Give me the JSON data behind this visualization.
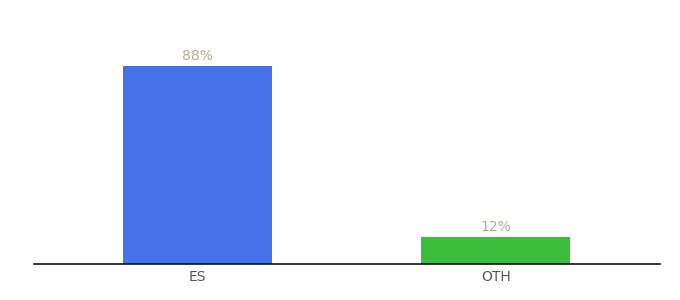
{
  "categories": [
    "ES",
    "OTH"
  ],
  "values": [
    88,
    12
  ],
  "bar_colors": [
    "#4472e8",
    "#3dbd3d"
  ],
  "bar_width": 0.5,
  "xlabel": "",
  "ylabel": "",
  "ylim": [
    0,
    100
  ],
  "label_color": "#b8a898",
  "label_fontsize": 10,
  "tick_fontsize": 10,
  "background_color": "#ffffff",
  "axis_line_color": "#111111"
}
